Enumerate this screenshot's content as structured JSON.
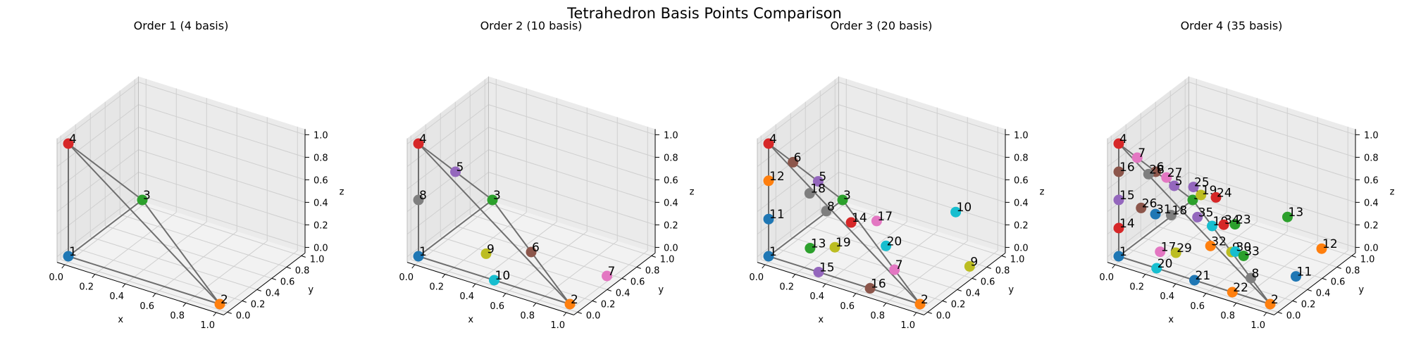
{
  "figure": {
    "title": "Tetrahedron Basis Points Comparison"
  },
  "chart_data": [
    {
      "type": "scatter3d",
      "title": "Order 1 (4 basis)",
      "xlabel": "x",
      "ylabel": "y",
      "zlabel": "z",
      "xlim": [
        0,
        1
      ],
      "ylim": [
        0,
        1
      ],
      "zlim": [
        0,
        1
      ],
      "ticks": [
        "0.0",
        "0.2",
        "0.4",
        "0.6",
        "0.8",
        "1.0"
      ],
      "grid": true,
      "edges": [
        [
          1,
          2
        ],
        [
          1,
          3
        ],
        [
          1,
          4
        ],
        [
          2,
          3
        ],
        [
          2,
          4
        ],
        [
          3,
          4
        ]
      ],
      "points": [
        {
          "label": "1",
          "x": 0,
          "y": 0,
          "z": 0
        },
        {
          "label": "2",
          "x": 1,
          "y": 0,
          "z": 0
        },
        {
          "label": "3",
          "x": 0,
          "y": 1,
          "z": 0
        },
        {
          "label": "4",
          "x": 0,
          "y": 0,
          "z": 1
        }
      ]
    },
    {
      "type": "scatter3d",
      "title": "Order 2 (10 basis)",
      "xlabel": "x",
      "ylabel": "y",
      "zlabel": "z",
      "xlim": [
        0,
        1
      ],
      "ylim": [
        0,
        1
      ],
      "zlim": [
        0,
        1
      ],
      "ticks": [
        "0.0",
        "0.2",
        "0.4",
        "0.6",
        "0.8",
        "1.0"
      ],
      "grid": true,
      "edges": [
        [
          1,
          2
        ],
        [
          1,
          3
        ],
        [
          1,
          4
        ],
        [
          2,
          3
        ],
        [
          2,
          4
        ],
        [
          3,
          4
        ]
      ],
      "points": [
        {
          "label": "1",
          "x": 0,
          "y": 0,
          "z": 0
        },
        {
          "label": "2",
          "x": 1,
          "y": 0,
          "z": 0
        },
        {
          "label": "3",
          "x": 0,
          "y": 1,
          "z": 0
        },
        {
          "label": "4",
          "x": 0,
          "y": 0,
          "z": 1
        },
        {
          "label": "5",
          "x": 0,
          "y": 0.5,
          "z": 0.5
        },
        {
          "label": "6",
          "x": 0.5,
          "y": 0.5,
          "z": 0
        },
        {
          "label": "7",
          "x": 1,
          "y": 0.5,
          "z": 0
        },
        {
          "label": "8",
          "x": 0,
          "y": 0,
          "z": 0.5
        },
        {
          "label": "9",
          "x": 0.3,
          "y": 0.3,
          "z": 0
        },
        {
          "label": "10",
          "x": 0.5,
          "y": 0,
          "z": 0
        }
      ]
    },
    {
      "type": "scatter3d",
      "title": "Order 3 (20 basis)",
      "xlabel": "x",
      "ylabel": "y",
      "zlabel": "z",
      "xlim": [
        0,
        1
      ],
      "ylim": [
        0,
        1
      ],
      "zlim": [
        0,
        1
      ],
      "ticks": [
        "0.0",
        "0.2",
        "0.4",
        "0.6",
        "0.8",
        "1.0"
      ],
      "grid": true,
      "edges": [
        [
          1,
          2
        ],
        [
          1,
          3
        ],
        [
          1,
          4
        ],
        [
          2,
          3
        ],
        [
          2,
          4
        ],
        [
          3,
          4
        ]
      ],
      "points": [
        {
          "label": "1",
          "x": 0,
          "y": 0,
          "z": 0
        },
        {
          "label": "2",
          "x": 1,
          "y": 0,
          "z": 0
        },
        {
          "label": "3",
          "x": 0,
          "y": 1,
          "z": 0
        },
        {
          "label": "4",
          "x": 0,
          "y": 0,
          "z": 1
        },
        {
          "label": "5",
          "x": 0,
          "y": 0.67,
          "z": 0.33
        },
        {
          "label": "6",
          "x": 0,
          "y": 0.33,
          "z": 0.67
        },
        {
          "label": "7",
          "x": 0.67,
          "y": 0.33,
          "z": 0
        },
        {
          "label": "8",
          "x": 0.22,
          "y": 0.33,
          "z": 0.33
        },
        {
          "label": "9",
          "x": 1,
          "y": 0.67,
          "z": 0
        },
        {
          "label": "10",
          "x": 0.83,
          "y": 0.83,
          "z": 0.33
        },
        {
          "label": "11",
          "x": 0,
          "y": 0,
          "z": 0.33
        },
        {
          "label": "12",
          "x": 0,
          "y": 0,
          "z": 0.67
        },
        {
          "label": "13",
          "x": 0.22,
          "y": 0.11,
          "z": 0.11
        },
        {
          "label": "14",
          "x": 0.33,
          "y": 0.44,
          "z": 0.22
        },
        {
          "label": "15",
          "x": 0.33,
          "y": 0,
          "z": 0
        },
        {
          "label": "16",
          "x": 0.67,
          "y": 0,
          "z": 0
        },
        {
          "label": "17",
          "x": 0.44,
          "y": 0.56,
          "z": 0.22
        },
        {
          "label": "18",
          "x": 0.11,
          "y": 0.33,
          "z": 0.44
        },
        {
          "label": "19",
          "x": 0.33,
          "y": 0.22,
          "z": 0.11
        },
        {
          "label": "20",
          "x": 0.56,
          "y": 0.44,
          "z": 0.11
        }
      ]
    },
    {
      "type": "scatter3d",
      "title": "Order 4 (35 basis)",
      "xlabel": "x",
      "ylabel": "y",
      "zlabel": "z",
      "xlim": [
        0,
        1
      ],
      "ylim": [
        0,
        1
      ],
      "zlim": [
        0,
        1
      ],
      "ticks": [
        "0.0",
        "0.2",
        "0.4",
        "0.6",
        "0.8",
        "1.0"
      ],
      "grid": true,
      "edges": [
        [
          1,
          2
        ],
        [
          1,
          3
        ],
        [
          1,
          4
        ],
        [
          2,
          3
        ],
        [
          2,
          4
        ],
        [
          3,
          4
        ]
      ],
      "points": [
        {
          "label": "1",
          "x": 0,
          "y": 0,
          "z": 0
        },
        {
          "label": "2",
          "x": 1,
          "y": 0,
          "z": 0
        },
        {
          "label": "3",
          "x": 0,
          "y": 1,
          "z": 0
        },
        {
          "label": "4",
          "x": 0,
          "y": 0,
          "z": 1
        },
        {
          "label": "5",
          "x": 0,
          "y": 0.75,
          "z": 0.25
        },
        {
          "label": "6",
          "x": 0,
          "y": 0.5,
          "z": 0.5
        },
        {
          "label": "7",
          "x": 0,
          "y": 0.25,
          "z": 0.75
        },
        {
          "label": "8",
          "x": 0.75,
          "y": 0.25,
          "z": 0
        },
        {
          "label": "9",
          "x": 0.5,
          "y": 0.5,
          "z": 0
        },
        {
          "label": "10",
          "x": 0.25,
          "y": 0.75,
          "z": 0
        },
        {
          "label": "11",
          "x": 0.95,
          "y": 0.45,
          "z": 0
        },
        {
          "label": "12",
          "x": 0.9,
          "y": 0.9,
          "z": 0
        },
        {
          "label": "13",
          "x": 0.65,
          "y": 0.95,
          "z": 0.15
        },
        {
          "label": "14",
          "x": 0,
          "y": 0,
          "z": 0.25
        },
        {
          "label": "15",
          "x": 0,
          "y": 0,
          "z": 0.5
        },
        {
          "label": "16",
          "x": 0,
          "y": 0,
          "z": 0.75
        },
        {
          "label": "17",
          "x": 0.2,
          "y": 0.15,
          "z": 0.05
        },
        {
          "label": "18",
          "x": 0.2,
          "y": 0.3,
          "z": 0.3
        },
        {
          "label": "19",
          "x": 0.25,
          "y": 0.6,
          "z": 0.35
        },
        {
          "label": "20",
          "x": 0.25,
          "y": 0,
          "z": 0
        },
        {
          "label": "21",
          "x": 0.5,
          "y": 0,
          "z": 0
        },
        {
          "label": "22",
          "x": 0.75,
          "y": 0,
          "z": 0
        },
        {
          "label": "23",
          "x": 0.45,
          "y": 0.65,
          "z": 0.15
        },
        {
          "label": "24",
          "x": 0.3,
          "y": 0.7,
          "z": 0.3
        },
        {
          "label": "25",
          "x": 0.2,
          "y": 0.6,
          "z": 0.4
        },
        {
          "label": "26",
          "x": 0.05,
          "y": 0.2,
          "z": 0.35
        },
        {
          "label": "27",
          "x": 0.12,
          "y": 0.4,
          "z": 0.55
        },
        {
          "label": "28",
          "x": 0.05,
          "y": 0.3,
          "z": 0.6
        },
        {
          "label": "29",
          "x": 0.28,
          "y": 0.2,
          "z": 0.05
        },
        {
          "label": "30",
          "x": 0.55,
          "y": 0.45,
          "z": 0.05
        },
        {
          "label": "31",
          "x": 0.12,
          "y": 0.25,
          "z": 0.3
        },
        {
          "label": "32",
          "x": 0.42,
          "y": 0.38,
          "z": 0.08
        },
        {
          "label": "33",
          "x": 0.58,
          "y": 0.5,
          "z": 0
        },
        {
          "label": "34",
          "x": 0.4,
          "y": 0.6,
          "z": 0.15
        },
        {
          "label": "35",
          "x": 0.3,
          "y": 0.45,
          "z": 0.25
        }
      ]
    }
  ]
}
